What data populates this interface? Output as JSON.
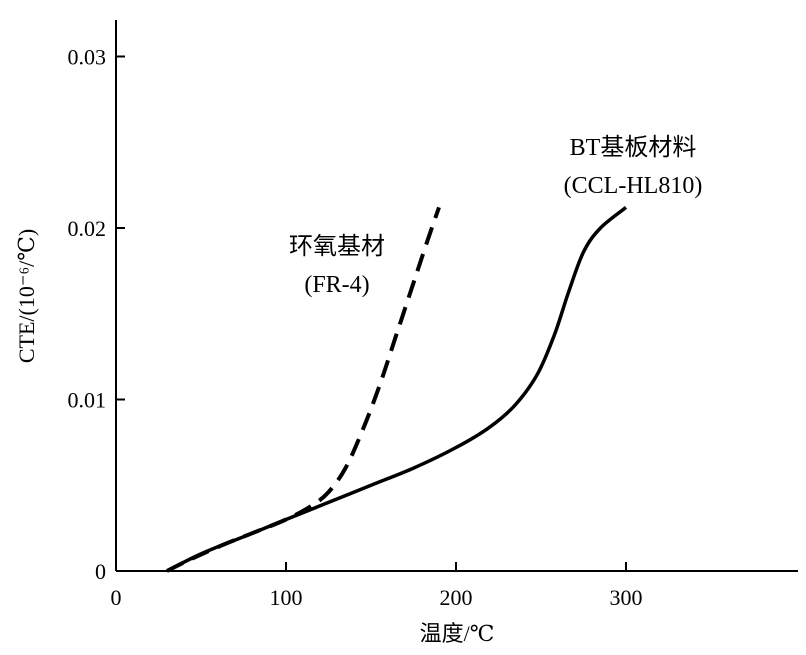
{
  "chart_data": {
    "type": "line",
    "title": "",
    "xlabel": "温度/℃",
    "ylabel": "CTE/(10⁻⁶/℃)",
    "xlim": [
      0,
      400
    ],
    "ylim": [
      0,
      0.033
    ],
    "x_ticks": [
      0,
      100,
      200,
      300
    ],
    "x_tick_labels": [
      "0",
      "100",
      "200",
      "300"
    ],
    "y_ticks": [
      0,
      0.01,
      0.02,
      0.03
    ],
    "y_tick_labels": [
      "0",
      "0.01",
      "0.02",
      "0.03"
    ],
    "grid": false,
    "legend": "none",
    "series": [
      {
        "style": "dashed",
        "color": "#000000",
        "label_lines": [
          "环氧基材",
          "(FR-4)"
        ],
        "points": [
          [
            30,
            0
          ],
          [
            40,
            0.0005
          ],
          [
            60,
            0.0014
          ],
          [
            80,
            0.0022
          ],
          [
            100,
            0.003
          ],
          [
            115,
            0.0038
          ],
          [
            125,
            0.0046
          ],
          [
            135,
            0.006
          ],
          [
            145,
            0.0082
          ],
          [
            155,
            0.0108
          ],
          [
            165,
            0.0138
          ],
          [
            175,
            0.0168
          ],
          [
            183,
            0.0192
          ],
          [
            190,
            0.0212
          ]
        ]
      },
      {
        "style": "solid",
        "color": "#000000",
        "label_lines": [
          "BT基板材料",
          "(CCL-HL810)"
        ],
        "points": [
          [
            30,
            0
          ],
          [
            50,
            0.001
          ],
          [
            75,
            0.002
          ],
          [
            100,
            0.003
          ],
          [
            125,
            0.004
          ],
          [
            150,
            0.005
          ],
          [
            175,
            0.006
          ],
          [
            200,
            0.0072
          ],
          [
            220,
            0.0084
          ],
          [
            235,
            0.0097
          ],
          [
            248,
            0.0115
          ],
          [
            258,
            0.0138
          ],
          [
            266,
            0.0162
          ],
          [
            275,
            0.0186
          ],
          [
            285,
            0.02
          ],
          [
            300,
            0.0212
          ]
        ]
      }
    ]
  }
}
